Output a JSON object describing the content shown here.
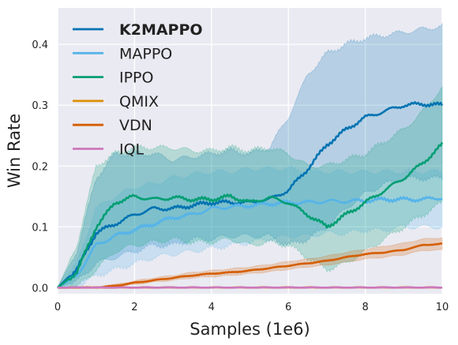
{
  "chart_data": {
    "type": "line",
    "xlabel": "Samples (1e6)",
    "ylabel": "Win Rate",
    "xlim": [
      0,
      10
    ],
    "ylim": [
      -0.01,
      0.46
    ],
    "xticks": [
      "0",
      "2",
      "4",
      "6",
      "8",
      "10"
    ],
    "yticks": [
      "0.0",
      "0.1",
      "0.2",
      "0.3",
      "0.4"
    ],
    "grid": true,
    "legend_position": "upper-left",
    "background": "#eaeaf2",
    "x": [
      0,
      0.5,
      1,
      1.5,
      2,
      2.5,
      3,
      3.5,
      4,
      4.5,
      5,
      5.5,
      6,
      6.5,
      7,
      7.5,
      8,
      8.5,
      9,
      9.5,
      10
    ],
    "series": [
      {
        "name": "K2MAPPO",
        "bold": true,
        "color": "#0173b2",
        "values": [
          0.0,
          0.03,
          0.09,
          0.105,
          0.12,
          0.13,
          0.13,
          0.135,
          0.14,
          0.14,
          0.14,
          0.145,
          0.16,
          0.195,
          0.235,
          0.26,
          0.28,
          0.29,
          0.3,
          0.302,
          0.3
        ],
        "upper": [
          0.0,
          0.06,
          0.18,
          0.22,
          0.22,
          0.22,
          0.21,
          0.215,
          0.22,
          0.225,
          0.22,
          0.23,
          0.28,
          0.35,
          0.385,
          0.4,
          0.41,
          0.415,
          0.42,
          0.425,
          0.43
        ],
        "lower": [
          0.0,
          0.01,
          0.04,
          0.05,
          0.06,
          0.07,
          0.07,
          0.08,
          0.08,
          0.085,
          0.085,
          0.085,
          0.07,
          0.08,
          0.1,
          0.13,
          0.155,
          0.17,
          0.18,
          0.18,
          0.18
        ]
      },
      {
        "name": "MAPPO",
        "color": "#56b4e9",
        "values": [
          0.0,
          0.02,
          0.07,
          0.085,
          0.095,
          0.105,
          0.115,
          0.12,
          0.13,
          0.133,
          0.135,
          0.138,
          0.14,
          0.14,
          0.142,
          0.142,
          0.143,
          0.145,
          0.145,
          0.145,
          0.148
        ],
        "upper": [
          0.0,
          0.04,
          0.13,
          0.15,
          0.165,
          0.17,
          0.18,
          0.185,
          0.19,
          0.19,
          0.195,
          0.195,
          0.195,
          0.19,
          0.19,
          0.19,
          0.19,
          0.19,
          0.19,
          0.19,
          0.19
        ],
        "lower": [
          0.0,
          0.0,
          0.02,
          0.03,
          0.04,
          0.05,
          0.055,
          0.06,
          0.065,
          0.07,
          0.075,
          0.08,
          0.085,
          0.085,
          0.09,
          0.09,
          0.095,
          0.095,
          0.1,
          0.1,
          0.1
        ]
      },
      {
        "name": "IPPO",
        "color": "#029e73",
        "values": [
          0.0,
          0.025,
          0.1,
          0.14,
          0.15,
          0.145,
          0.148,
          0.145,
          0.145,
          0.15,
          0.14,
          0.148,
          0.14,
          0.12,
          0.1,
          0.12,
          0.14,
          0.16,
          0.18,
          0.205,
          0.235
        ],
        "upper": [
          0.0,
          0.07,
          0.2,
          0.22,
          0.23,
          0.23,
          0.23,
          0.225,
          0.225,
          0.23,
          0.225,
          0.23,
          0.22,
          0.2,
          0.2,
          0.21,
          0.22,
          0.24,
          0.26,
          0.29,
          0.33
        ],
        "lower": [
          0.0,
          0.0,
          0.03,
          0.06,
          0.07,
          0.075,
          0.08,
          0.075,
          0.075,
          0.08,
          0.07,
          0.075,
          0.07,
          0.05,
          0.03,
          0.04,
          0.06,
          0.08,
          0.1,
          0.12,
          0.14
        ]
      },
      {
        "name": "QMIX",
        "color": "#de8f05",
        "values": [
          0,
          0,
          0,
          0,
          0,
          0,
          0,
          0,
          0,
          0,
          0,
          0,
          0,
          0,
          0,
          0,
          0,
          0,
          0,
          0,
          0
        ],
        "upper": [
          0,
          0,
          0,
          0,
          0,
          0,
          0,
          0,
          0,
          0,
          0,
          0,
          0,
          0,
          0,
          0,
          0,
          0,
          0,
          0,
          0
        ],
        "lower": [
          0,
          0,
          0,
          0,
          0,
          0,
          0,
          0,
          0,
          0,
          0,
          0,
          0,
          0,
          0,
          0,
          0,
          0,
          0,
          0,
          0
        ]
      },
      {
        "name": "VDN",
        "color": "#d55e00",
        "values": [
          0.0,
          0.0,
          0.0,
          0.003,
          0.008,
          0.012,
          0.016,
          0.02,
          0.023,
          0.025,
          0.028,
          0.032,
          0.036,
          0.04,
          0.044,
          0.05,
          0.055,
          0.058,
          0.062,
          0.07,
          0.072
        ],
        "upper": [
          0.0,
          0.0,
          0.0,
          0.005,
          0.011,
          0.016,
          0.02,
          0.025,
          0.028,
          0.031,
          0.034,
          0.038,
          0.043,
          0.047,
          0.052,
          0.058,
          0.063,
          0.068,
          0.073,
          0.08,
          0.082
        ],
        "lower": [
          0.0,
          0.0,
          0.0,
          0.001,
          0.005,
          0.009,
          0.012,
          0.016,
          0.018,
          0.02,
          0.023,
          0.026,
          0.03,
          0.034,
          0.037,
          0.042,
          0.047,
          0.05,
          0.054,
          0.061,
          0.062
        ]
      },
      {
        "name": "IQL",
        "color": "#cc78bc",
        "values": [
          0,
          0,
          0,
          0,
          0,
          0,
          0,
          0,
          0,
          0,
          0,
          0,
          0,
          0,
          0,
          0,
          0,
          0,
          0,
          0,
          0
        ],
        "upper": [
          0,
          0,
          0,
          0,
          0,
          0,
          0,
          0,
          0,
          0,
          0,
          0,
          0,
          0,
          0,
          0,
          0,
          0,
          0,
          0,
          0
        ],
        "lower": [
          0,
          0,
          0,
          0,
          0,
          0,
          0,
          0,
          0,
          0,
          0,
          0,
          0,
          0,
          0,
          0,
          0,
          0,
          0,
          0,
          0
        ]
      }
    ]
  }
}
